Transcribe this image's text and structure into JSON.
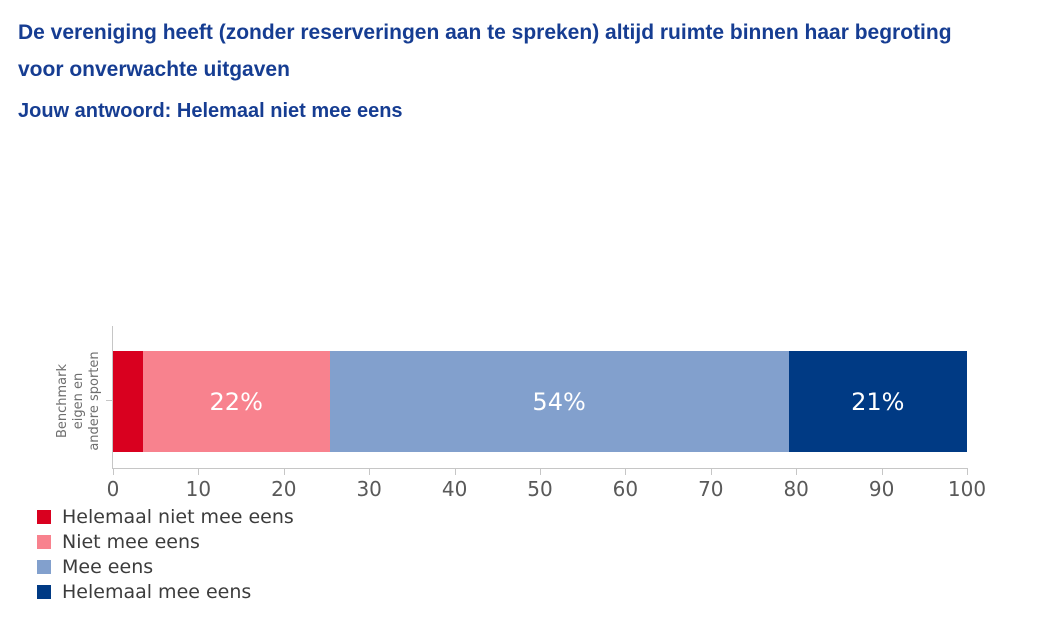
{
  "page": {
    "title": "De vereniging heeft (zonder reserveringen aan te spreken) altijd ruimte binnen haar begroting voor onverwachte uitgaven",
    "answer_line": "Jouw antwoord: Helemaal niet mee eens"
  },
  "colors": {
    "heading_blue": "#163d92",
    "axis_gray": "#c6c6c6",
    "tick_text_gray": "#595959",
    "ylabel_gray": "#6e6e6e",
    "legend_text": "#3c3c3c",
    "segment_label_white": "#ffffff"
  },
  "chart_data": {
    "type": "bar",
    "orientation": "horizontal",
    "stacked": true,
    "title": "",
    "xlabel": "",
    "ylabel": "Benchmark\neigen en\nandere sporten",
    "categories": [
      "Benchmark eigen en andere sporten"
    ],
    "series": [
      {
        "name": "Helemaal niet mee eens",
        "value": 3.5,
        "label": "",
        "color": "#d9001f"
      },
      {
        "name": "Niet mee eens",
        "value": 22,
        "label": "22%",
        "color": "#f8828e"
      },
      {
        "name": "Mee eens",
        "value": 54,
        "label": "54%",
        "color": "#82a0cd"
      },
      {
        "name": "Helemaal mee eens",
        "value": 21,
        "label": "21%",
        "color": "#003a84"
      }
    ],
    "x_ticks": [
      0,
      10,
      20,
      30,
      40,
      50,
      60,
      70,
      80,
      90,
      100
    ],
    "xlim": [
      0,
      100
    ],
    "grid": false,
    "legend_position": "bottom-left",
    "legend": [
      {
        "label": "Helemaal niet mee eens",
        "color": "#d9001f"
      },
      {
        "label": "Niet mee eens",
        "color": "#f8828e"
      },
      {
        "label": "Mee eens",
        "color": "#82a0cd"
      },
      {
        "label": "Helemaal mee eens",
        "color": "#003a84"
      }
    ]
  }
}
